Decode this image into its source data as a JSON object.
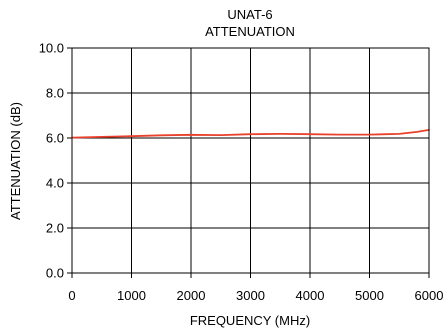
{
  "chart_data": {
    "type": "line",
    "title": "UNAT-6",
    "subtitle": "ATTENUATION",
    "xlabel": "FREQUENCY (MHz)",
    "ylabel": "ATTENUATION (dB)",
    "xlim": [
      0,
      6000
    ],
    "ylim": [
      0,
      10
    ],
    "xticks": [
      0,
      1000,
      2000,
      3000,
      4000,
      5000,
      6000
    ],
    "xtick_labels": [
      "0",
      "1000",
      "2000",
      "3000",
      "4000",
      "5000",
      "6000"
    ],
    "yticks": [
      0,
      2,
      4,
      6,
      8,
      10
    ],
    "ytick_labels": [
      "0.0",
      "2.0",
      "4.0",
      "6.0",
      "8.0",
      "10.0"
    ],
    "grid": true,
    "series": [
      {
        "color": "#e8412c",
        "x": [
          0,
          500,
          1000,
          1500,
          2000,
          2500,
          3000,
          3500,
          4000,
          4500,
          5000,
          5500,
          5800,
          6000
        ],
        "y": [
          6.02,
          6.05,
          6.08,
          6.12,
          6.14,
          6.13,
          6.17,
          6.18,
          6.17,
          6.15,
          6.15,
          6.18,
          6.27,
          6.36
        ]
      }
    ]
  }
}
